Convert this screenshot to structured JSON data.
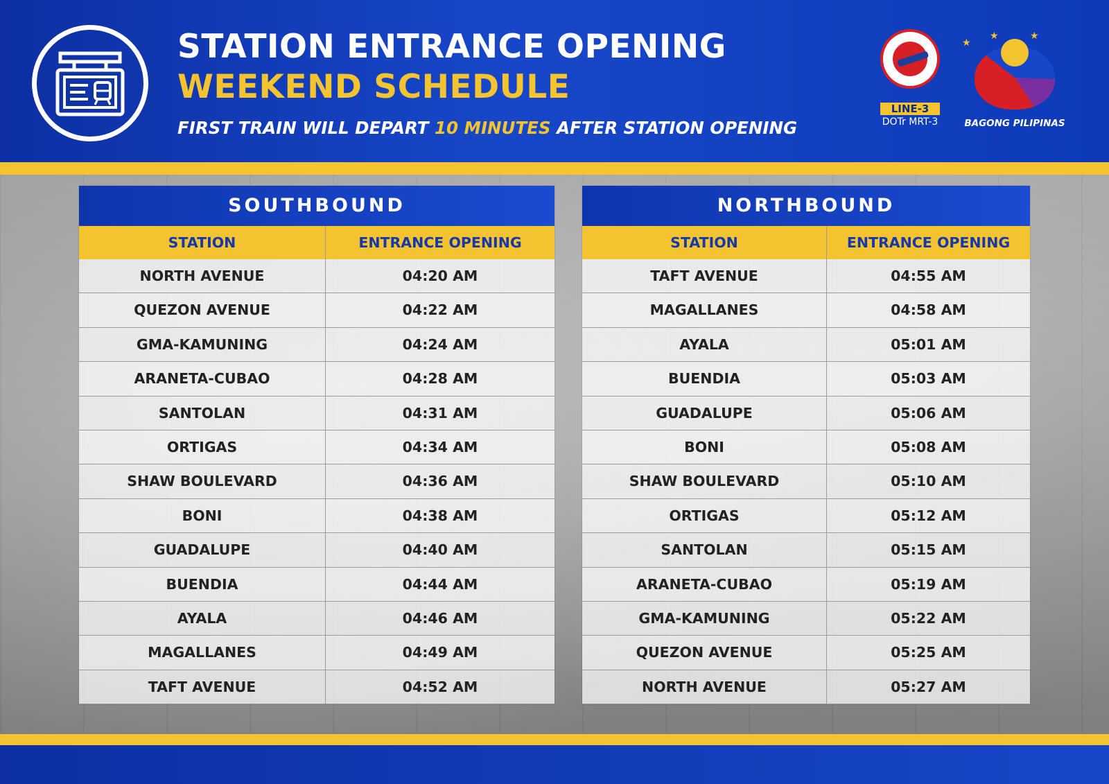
{
  "header": {
    "title_line1": "STATION ENTRANCE OPENING",
    "title_line2": "WEEKEND SCHEDULE",
    "subtitle_pre": "FIRST TRAIN WILL DEPART ",
    "subtitle_highlight": "10 MINUTES",
    "subtitle_post": " AFTER STATION OPENING",
    "icon": "station-board-icon"
  },
  "logos": {
    "dotr_badge": "LINE-3",
    "dotr_caption": "DOTr MRT-3",
    "bp_caption": "BAGONG PILIPINAS"
  },
  "colors": {
    "brand_blue": "#1747c8",
    "accent_gold": "#f3c42f"
  },
  "southbound": {
    "title": "SOUTHBOUND",
    "columns": [
      "STATION",
      "ENTRANCE OPENING"
    ],
    "rows": [
      {
        "station": "NORTH AVENUE",
        "time": "04:20 AM"
      },
      {
        "station": "QUEZON AVENUE",
        "time": "04:22 AM"
      },
      {
        "station": "GMA-KAMUNING",
        "time": "04:24 AM"
      },
      {
        "station": "ARANETA-CUBAO",
        "time": "04:28 AM"
      },
      {
        "station": "SANTOLAN",
        "time": "04:31 AM"
      },
      {
        "station": "ORTIGAS",
        "time": "04:34 AM"
      },
      {
        "station": "SHAW BOULEVARD",
        "time": "04:36 AM"
      },
      {
        "station": "BONI",
        "time": "04:38 AM"
      },
      {
        "station": "GUADALUPE",
        "time": "04:40 AM"
      },
      {
        "station": "BUENDIA",
        "time": "04:44 AM"
      },
      {
        "station": "AYALA",
        "time": "04:46 AM"
      },
      {
        "station": "MAGALLANES",
        "time": "04:49 AM"
      },
      {
        "station": "TAFT AVENUE",
        "time": "04:52 AM"
      }
    ]
  },
  "northbound": {
    "title": "NORTHBOUND",
    "columns": [
      "STATION",
      "ENTRANCE OPENING"
    ],
    "rows": [
      {
        "station": "TAFT AVENUE",
        "time": "04:55 AM"
      },
      {
        "station": "MAGALLANES",
        "time": "04:58 AM"
      },
      {
        "station": "AYALA",
        "time": "05:01 AM"
      },
      {
        "station": "BUENDIA",
        "time": "05:03 AM"
      },
      {
        "station": "GUADALUPE",
        "time": "05:06 AM"
      },
      {
        "station": "BONI",
        "time": "05:08 AM"
      },
      {
        "station": "SHAW BOULEVARD",
        "time": "05:10 AM"
      },
      {
        "station": "ORTIGAS",
        "time": "05:12 AM"
      },
      {
        "station": "SANTOLAN",
        "time": "05:15 AM"
      },
      {
        "station": "ARANETA-CUBAO",
        "time": "05:19 AM"
      },
      {
        "station": "GMA-KAMUNING",
        "time": "05:22 AM"
      },
      {
        "station": "QUEZON AVENUE",
        "time": "05:25 AM"
      },
      {
        "station": "NORTH AVENUE",
        "time": "05:27 AM"
      }
    ]
  }
}
